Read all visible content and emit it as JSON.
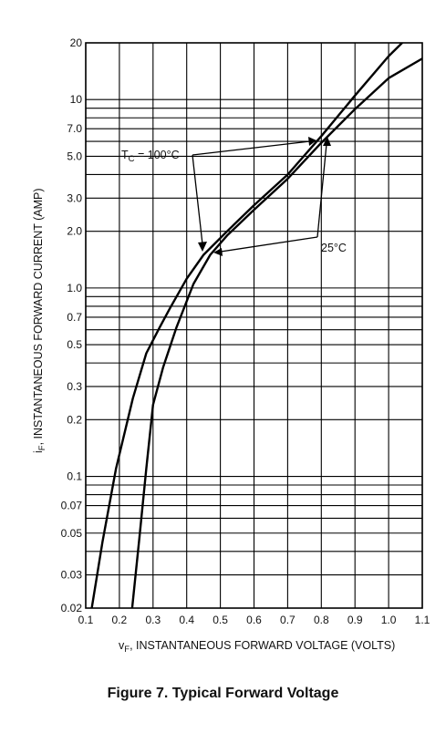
{
  "caption": "Figure 7. Typical Forward Voltage",
  "chart_data": {
    "type": "line",
    "xlabel": {
      "main": "v",
      "sub": "F",
      "rest": ", INSTANTANEOUS FORWARD VOLTAGE (VOLTS)"
    },
    "ylabel": {
      "main": "i",
      "sub": "F",
      "rest": ", INSTANTANEOUS FORWARD CURRENT (AMP)"
    },
    "xlim": [
      0.1,
      1.1
    ],
    "ylim": [
      0.02,
      20
    ],
    "yscale": "log",
    "grid": true,
    "x_ticks": [
      0.1,
      0.2,
      0.3,
      0.4,
      0.5,
      0.6,
      0.7,
      0.8,
      0.9,
      1.0,
      1.1
    ],
    "x_tick_labels": [
      "0.1",
      "0.2",
      "0.3",
      "0.4",
      "0.5",
      "0.6",
      "0.7",
      "0.8",
      "0.9",
      "1.0",
      "1.1"
    ],
    "y_ticks": [
      0.02,
      0.03,
      0.05,
      0.07,
      0.1,
      0.2,
      0.3,
      0.5,
      0.7,
      1.0,
      2.0,
      3.0,
      5.0,
      7.0,
      10,
      20
    ],
    "y_tick_labels": [
      "0.02",
      "0.03",
      "0.05",
      "0.07",
      "0.1",
      "0.2",
      "0.3",
      "0.5",
      "0.7",
      "1.0",
      "2.0",
      "3.0",
      "5.0",
      "7.0",
      "10",
      "20"
    ],
    "y_gridlines": [
      0.02,
      0.03,
      0.04,
      0.05,
      0.06,
      0.07,
      0.08,
      0.09,
      0.1,
      0.2,
      0.3,
      0.4,
      0.5,
      0.6,
      0.7,
      0.8,
      0.9,
      1,
      2,
      3,
      4,
      5,
      6,
      7,
      8,
      9,
      10,
      20
    ],
    "series": [
      {
        "points": [
          [
            0.118,
            0.02
          ],
          [
            0.15,
            0.045
          ],
          [
            0.19,
            0.11
          ],
          [
            0.24,
            0.26
          ],
          [
            0.28,
            0.45
          ],
          [
            0.32,
            0.62
          ],
          [
            0.35,
            0.78
          ],
          [
            0.4,
            1.12
          ],
          [
            0.45,
            1.5
          ],
          [
            0.52,
            2.0
          ],
          [
            0.6,
            2.75
          ],
          [
            0.7,
            4.0
          ],
          [
            0.8,
            6.4
          ],
          [
            0.9,
            10.5
          ],
          [
            1.0,
            17.0
          ],
          [
            1.04,
            20.0
          ]
        ]
      },
      {
        "points": [
          [
            0.238,
            0.02
          ],
          [
            0.26,
            0.048
          ],
          [
            0.28,
            0.11
          ],
          [
            0.3,
            0.24
          ],
          [
            0.33,
            0.38
          ],
          [
            0.37,
            0.62
          ],
          [
            0.42,
            1.05
          ],
          [
            0.47,
            1.5
          ],
          [
            0.52,
            1.9
          ],
          [
            0.6,
            2.6
          ],
          [
            0.7,
            3.8
          ],
          [
            0.8,
            5.9
          ],
          [
            0.9,
            8.9
          ],
          [
            1.0,
            13.0
          ],
          [
            1.1,
            16.5
          ]
        ]
      }
    ],
    "annotations": [
      {
        "id": "tc",
        "main": "T",
        "sub": "C",
        "rest": " = 100°C"
      },
      {
        "id": "t25",
        "text": "25°C"
      }
    ]
  }
}
